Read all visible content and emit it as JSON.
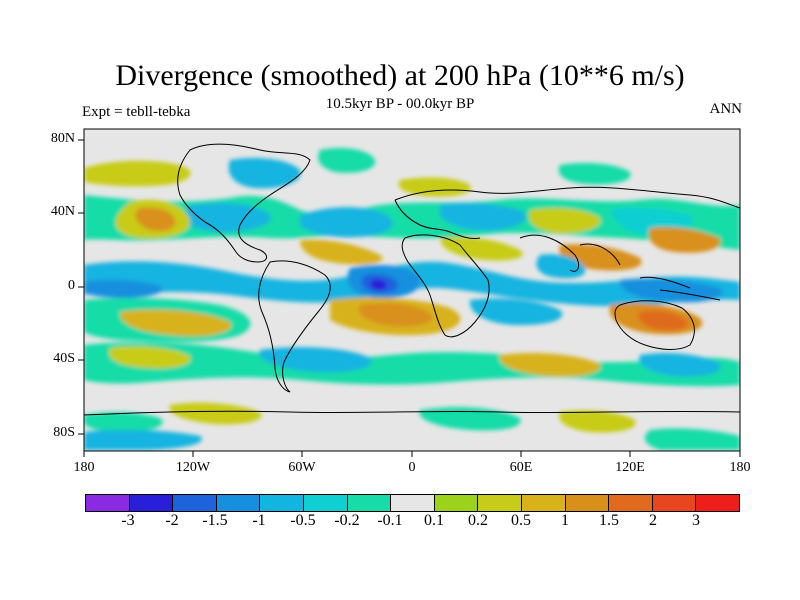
{
  "title": "Divergence (smoothed) at 200 hPa (10**6 m/s)",
  "subtitle": "10.5kyr BP - 00.0kyr BP",
  "left_label": "Expt = tebll-tebka",
  "right_label": "ANN",
  "y_ticks": [
    "80N",
    "40N",
    "0",
    "40S",
    "80S"
  ],
  "x_ticks": [
    "180",
    "120W",
    "60W",
    "0",
    "60E",
    "120E",
    "180"
  ],
  "colorbar": {
    "colors": [
      "#8a2be2",
      "#2a1fd9",
      "#1e63db",
      "#1690de",
      "#12b4e0",
      "#10cfd2",
      "#18dca8",
      "#e6e6e6",
      "#9cd11c",
      "#c8cc18",
      "#d8b21a",
      "#d9901a",
      "#e06a1e",
      "#e8461e",
      "#ee1e1a"
    ],
    "labels": [
      "-3",
      "-2",
      "-1.5",
      "-1",
      "-0.5",
      "-0.2",
      "-0.1",
      "0.1",
      "0.2",
      "0.5",
      "1",
      "1.5",
      "2",
      "3"
    ]
  }
}
